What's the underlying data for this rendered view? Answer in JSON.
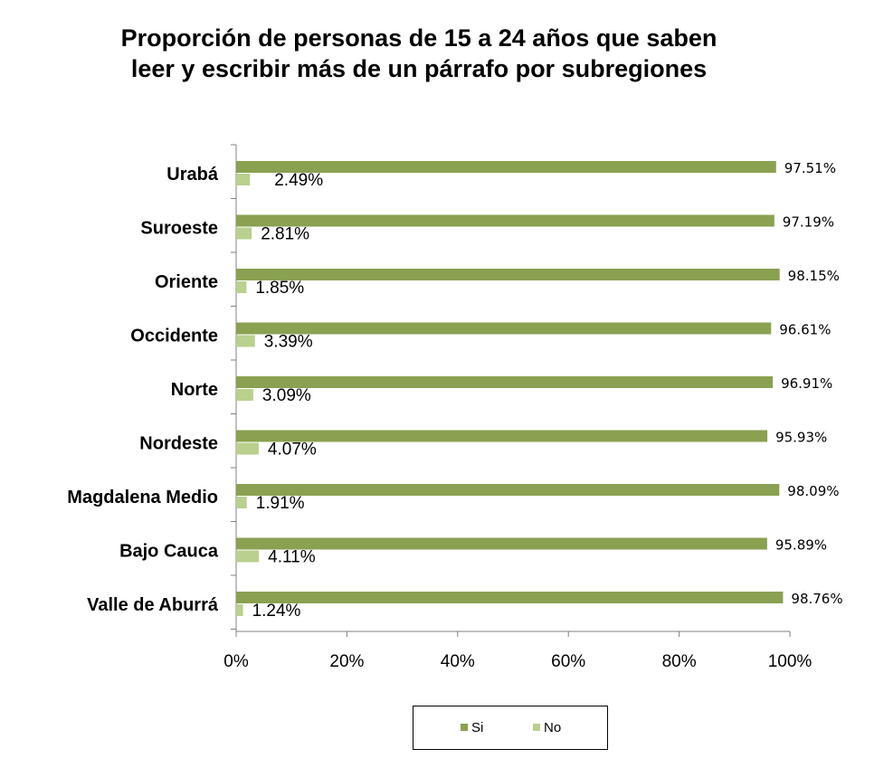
{
  "chart_data": {
    "type": "bar",
    "orientation": "horizontal",
    "title": [
      "Proporción de personas de 15 a 24 años que saben",
      "leer y escribir más de un párrafo por subregiones"
    ],
    "categories": [
      "Urabá",
      "Suroeste",
      "Oriente",
      "Occidente",
      "Norte",
      "Nordeste",
      "Magdalena Medio",
      "Bajo Cauca",
      "Valle de Aburrá"
    ],
    "series": [
      {
        "name": "Si",
        "color": "#8aa151",
        "values": [
          97.51,
          97.19,
          98.15,
          96.61,
          96.91,
          95.93,
          98.09,
          95.89,
          98.76
        ],
        "labels": [
          "97.51%",
          "97.19%",
          "98.15%",
          "96.61%",
          "96.91%",
          "95.93%",
          "98.09%",
          "95.89%",
          "98.76%"
        ]
      },
      {
        "name": "No",
        "color": "#b9d08e",
        "values": [
          2.49,
          2.81,
          1.85,
          3.39,
          3.09,
          4.07,
          1.91,
          4.11,
          1.24
        ],
        "labels": [
          "2.49%",
          "2.81%",
          "1.85%",
          "3.39%",
          "3.09%",
          "4.07%",
          "1.91%",
          "4.11%",
          "1.24%"
        ]
      }
    ],
    "xlim": [
      0,
      100
    ],
    "xticks": [
      "0%",
      "20%",
      "40%",
      "60%",
      "80%",
      "100%"
    ],
    "xlabel": "",
    "ylabel": "",
    "grid": false,
    "legend_position": "bottom"
  }
}
